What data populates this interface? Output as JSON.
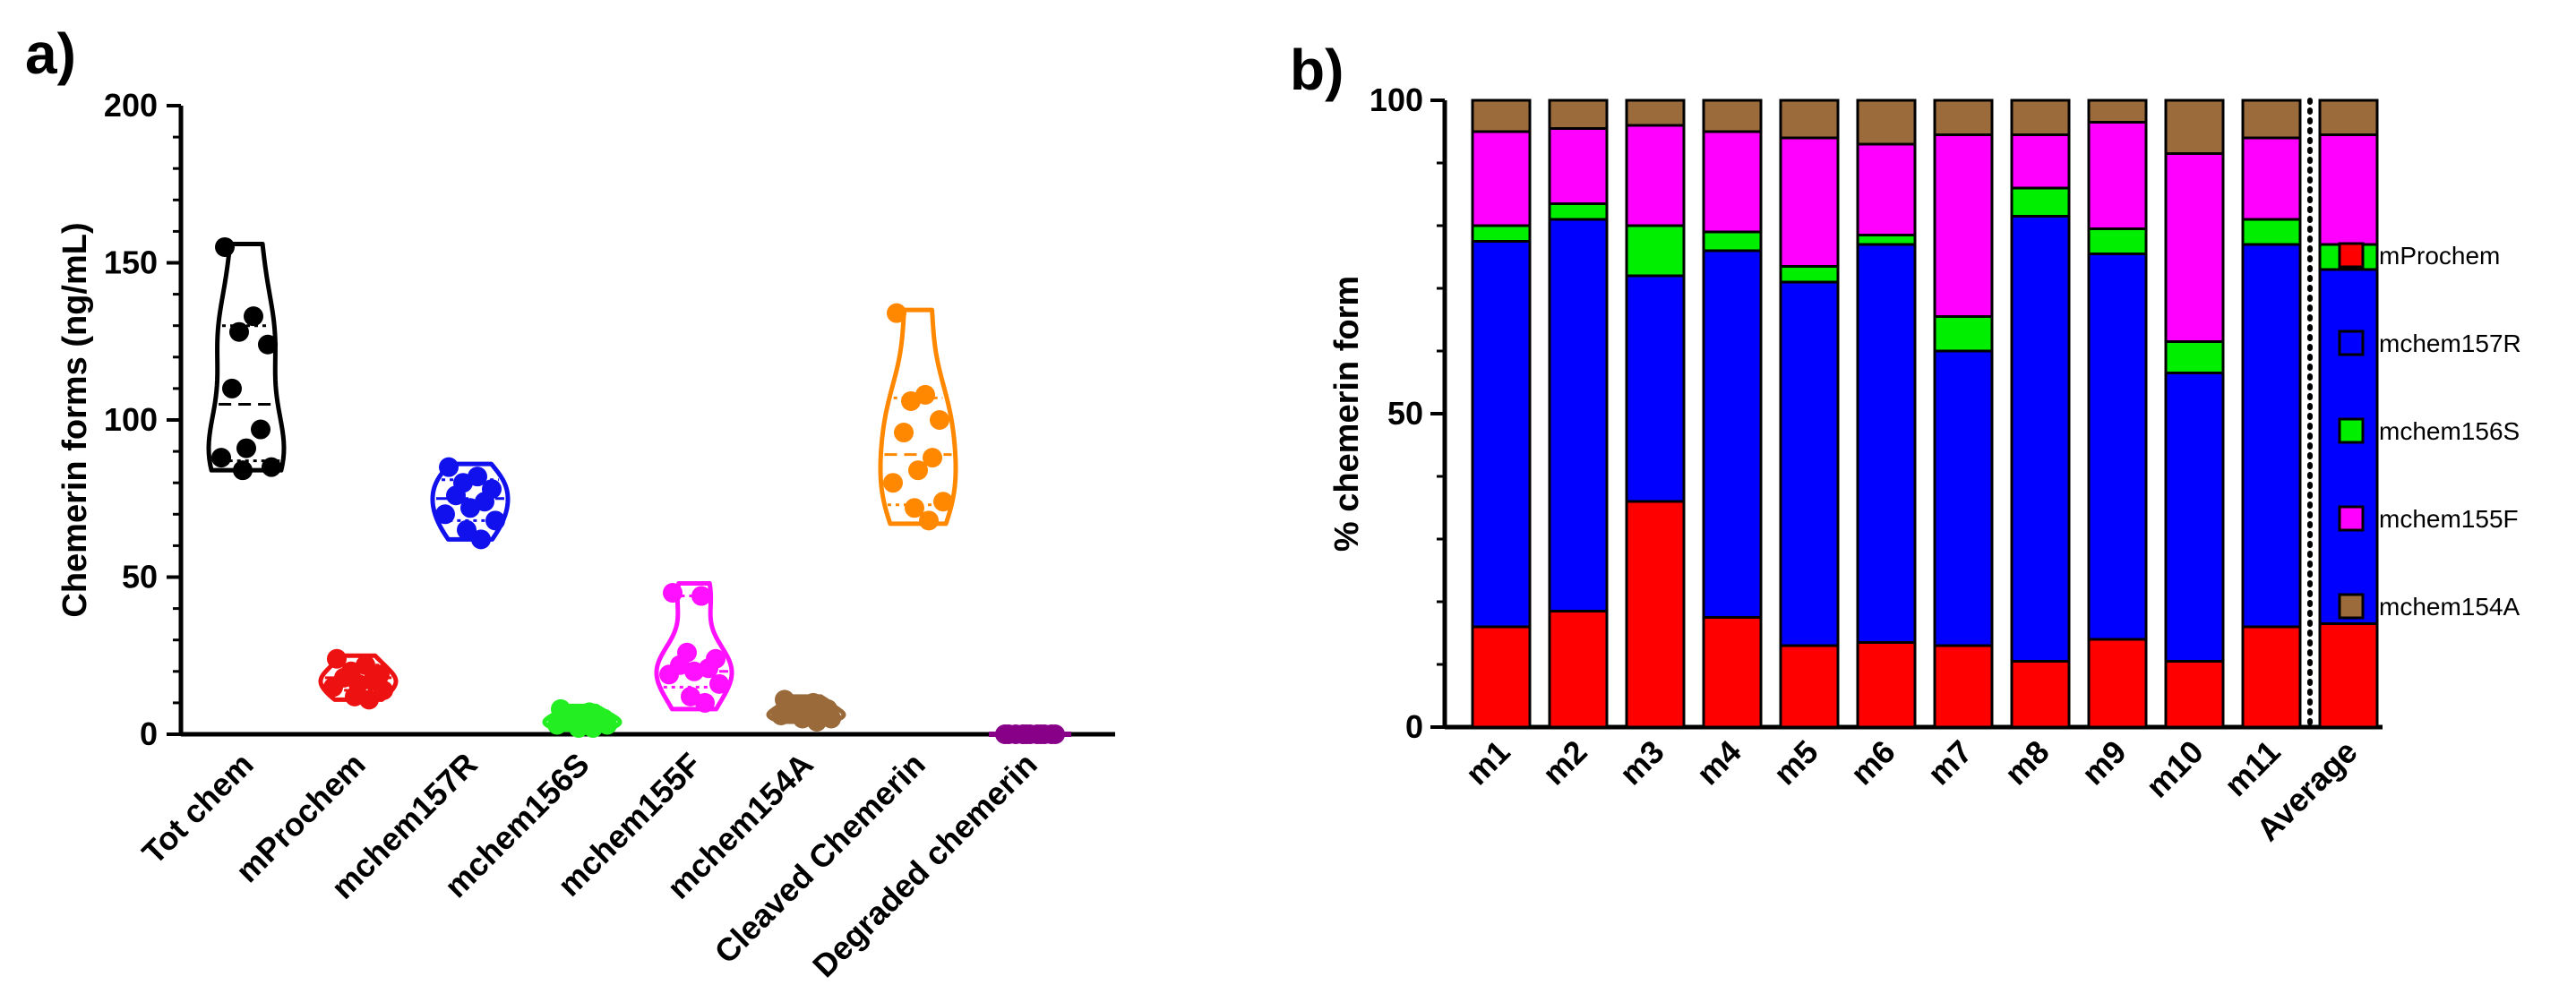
{
  "panels": [
    {
      "label": "a)"
    },
    {
      "label": "b)"
    }
  ],
  "chart_data": [
    {
      "type": "violin",
      "ylabel": "Chemerin forms (ng/mL)",
      "ylim": [
        0,
        200
      ],
      "yticks": [
        0,
        50,
        100,
        150,
        200
      ],
      "categories": [
        "Tot chem",
        "mProchem",
        "mchem157R",
        "mchem156S",
        "mchem155F",
        "mchem154A",
        "Cleaved Chemerin",
        "Degraded chemerin"
      ],
      "colors": [
        "#000000",
        "#ee1111",
        "#1111ee",
        "#22ee22",
        "#ff11ff",
        "#9a6a3a",
        "#ff8800",
        "#880088"
      ],
      "series": [
        {
          "name": "Tot chem",
          "points": [
            155,
            133,
            128,
            124,
            110,
            97,
            91,
            88,
            85,
            84
          ],
          "quartiles": [
            87,
            105,
            130
          ],
          "range": [
            84,
            156
          ]
        },
        {
          "name": "mProchem",
          "points": [
            24,
            22,
            20,
            19,
            18,
            17,
            16,
            15,
            14,
            12,
            11
          ],
          "quartiles": [
            14,
            18,
            22
          ],
          "range": [
            11,
            25
          ]
        },
        {
          "name": "mchem157R",
          "points": [
            85,
            82,
            80,
            78,
            76,
            74,
            72,
            70,
            68,
            65,
            62
          ],
          "quartiles": [
            68,
            75,
            81
          ],
          "range": [
            62,
            86
          ]
        },
        {
          "name": "mchem156S",
          "points": [
            8,
            7,
            6,
            5,
            5,
            4,
            4,
            3,
            3,
            2,
            2
          ],
          "quartiles": [
            2.5,
            4.5,
            6.5
          ],
          "range": [
            1.5,
            9
          ]
        },
        {
          "name": "mchem155F",
          "points": [
            45,
            44,
            26,
            24,
            22,
            21,
            20,
            19,
            16,
            12,
            10
          ],
          "quartiles": [
            15,
            20,
            44
          ],
          "range": [
            8,
            48
          ]
        },
        {
          "name": "mchem154A",
          "points": [
            11,
            10,
            9,
            8,
            7,
            7,
            6,
            6,
            5,
            5,
            4
          ],
          "quartiles": [
            5,
            7,
            9
          ],
          "range": [
            4,
            12
          ]
        },
        {
          "name": "Cleaved Chemerin",
          "points": [
            134,
            108,
            106,
            100,
            96,
            88,
            84,
            80,
            74,
            72,
            68
          ],
          "quartiles": [
            73,
            89,
            107
          ],
          "range": [
            67,
            135
          ]
        },
        {
          "name": "Degraded chemerin",
          "points": [
            0,
            0,
            0,
            0,
            0,
            0,
            0,
            0,
            0,
            0,
            0
          ],
          "quartiles": [
            0,
            0,
            0
          ],
          "range": [
            0,
            0
          ]
        }
      ]
    },
    {
      "type": "bar",
      "stacked": true,
      "ylabel": "% chemerin form",
      "ylim": [
        0,
        100
      ],
      "yticks": [
        0,
        50,
        100
      ],
      "categories": [
        "m1",
        "m2",
        "m3",
        "m4",
        "m5",
        "m6",
        "m7",
        "m8",
        "m9",
        "m10",
        "m11",
        "Average"
      ],
      "divider_after": "m11",
      "legend_position": "right",
      "series": [
        {
          "name": "mProchem",
          "color": "#ff0000",
          "values": [
            16,
            18.5,
            36,
            17.5,
            13,
            13.5,
            13,
            10.5,
            14,
            10.5,
            16,
            16.5
          ]
        },
        {
          "name": "mchem157R",
          "color": "#0000ff",
          "values": [
            61.5,
            62.5,
            36,
            58.5,
            58,
            63.5,
            47,
            71,
            61.5,
            46,
            61,
            56.5
          ]
        },
        {
          "name": "mchem156S",
          "color": "#00ee00",
          "values": [
            2.5,
            2.5,
            8,
            3,
            2.5,
            1.5,
            5.5,
            4.5,
            4,
            5,
            4,
            4
          ]
        },
        {
          "name": "mchem155F",
          "color": "#ff00ff",
          "values": [
            15,
            12,
            16,
            16,
            20.5,
            14.5,
            29,
            8.5,
            17,
            30,
            13,
            17.5
          ]
        },
        {
          "name": "mchem154A",
          "color": "#9c6b3c",
          "values": [
            5,
            4.5,
            4,
            5,
            6,
            7,
            5.5,
            5.5,
            3.5,
            8.5,
            6,
            5.5
          ]
        }
      ]
    }
  ]
}
